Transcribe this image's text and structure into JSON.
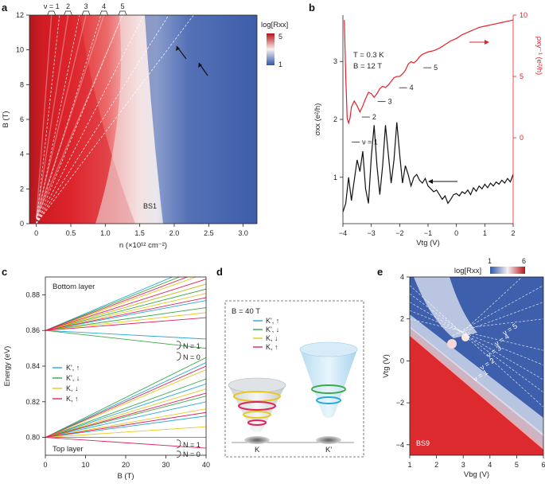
{
  "panels": [
    {
      "id": "a",
      "label": "a"
    },
    {
      "id": "b",
      "label": "b"
    },
    {
      "id": "c",
      "label": "c"
    },
    {
      "id": "d",
      "label": "d"
    },
    {
      "id": "e",
      "label": "e"
    }
  ],
  "colors": {
    "red": "#d9232b",
    "blue": "#3b5ba8",
    "white": "#f4f2f2",
    "axis": "#231f20",
    "bred": "#e4202a"
  },
  "panel_a": {
    "xlabel": "n (×10¹² cm⁻²)",
    "ylabel": "B (T)",
    "cbar_title": "log[Rxx]",
    "cbar_max": "5",
    "cbar_min": "1",
    "sample": "BS1",
    "nu_labels": [
      "ν = 1",
      "2",
      "3",
      "4",
      "5"
    ]
  },
  "chart_data": [
    {
      "type": "heatmap",
      "title": "",
      "xlabel": "n (×10¹² cm⁻²)",
      "ylabel": "B (T)",
      "xlim": [
        -0.1,
        3.2
      ],
      "ylim": [
        0,
        12
      ],
      "x_ticks": [
        0,
        0.5,
        1.0,
        1.5,
        2.0,
        2.5,
        3.0
      ],
      "y_ticks": [
        0,
        2,
        4,
        6,
        8,
        10,
        12
      ],
      "x_tick_labels": [
        "0",
        "0.5",
        "1.0",
        "1.5",
        "2.0",
        "2.5",
        "3.0"
      ],
      "y_tick_labels": [
        "0",
        "2",
        "4",
        "6",
        "8",
        "10",
        "12"
      ],
      "colorbar": {
        "label": "log[Rxx]",
        "min": 1,
        "max": 5
      },
      "fan_lines_nu": [
        1,
        2,
        3,
        4,
        5
      ],
      "annotation": "BS1"
    },
    {
      "type": "line",
      "xlabel": "Vtg (V)",
      "ylabel_left": "σxx (e²/h)",
      "ylabel_right": "ρxy⁻¹ (e²/h)",
      "xlim": [
        -4,
        2
      ],
      "ylim_left": [
        0.2,
        3.8
      ],
      "ylim_right": [
        -7,
        10
      ],
      "x_ticks": [
        -4,
        -3,
        -2,
        -1,
        0,
        1,
        2
      ],
      "x_tick_labels": [
        "−4",
        "−3",
        "−2",
        "−1",
        "0",
        "1",
        "2"
      ],
      "y_ticks_left": [
        1,
        2,
        3
      ],
      "y_tick_labels_left": [
        "1",
        "2",
        "3"
      ],
      "y_ticks_right": [
        0,
        5,
        10
      ],
      "y_tick_labels_right": [
        "0",
        "5",
        "10"
      ],
      "conditions": [
        "T = 0.3 K",
        "B = 12 T"
      ],
      "nu_labels": [
        "ν = 1",
        "2",
        "3",
        "4",
        "5"
      ],
      "series": [
        {
          "name": "σxx",
          "axis": "left",
          "color": "#111111",
          "x": [
            -4.0,
            -3.9,
            -3.8,
            -3.7,
            -3.6,
            -3.5,
            -3.4,
            -3.3,
            -3.2,
            -3.1,
            -3.0,
            -2.9,
            -2.8,
            -2.7,
            -2.6,
            -2.5,
            -2.4,
            -2.3,
            -2.2,
            -2.1,
            -2.0,
            -1.9,
            -1.8,
            -1.7,
            -1.6,
            -1.5,
            -1.4,
            -1.3,
            -1.2,
            -1.1,
            -1.0,
            -0.9,
            -0.8,
            -0.7,
            -0.6,
            -0.5,
            -0.4,
            -0.3,
            -0.2,
            -0.1,
            0.0,
            0.1,
            0.2,
            0.3,
            0.4,
            0.5,
            0.6,
            0.7,
            0.8,
            0.9,
            1.0,
            1.1,
            1.2,
            1.3,
            1.4,
            1.5,
            1.6,
            1.7,
            1.8,
            1.9,
            2.0
          ],
          "y": [
            0.4,
            0.55,
            1.0,
            0.6,
            0.95,
            1.3,
            1.1,
            1.45,
            0.8,
            0.55,
            1.35,
            1.9,
            1.2,
            0.7,
            1.2,
            1.9,
            1.4,
            0.9,
            1.3,
            1.95,
            1.4,
            0.9,
            1.2,
            1.05,
            0.85,
            1.0,
            1.05,
            0.95,
            0.9,
            0.98,
            0.85,
            0.8,
            0.75,
            0.78,
            0.7,
            0.62,
            0.68,
            0.55,
            0.62,
            0.7,
            0.72,
            0.68,
            0.75,
            0.72,
            0.78,
            0.7,
            0.82,
            0.76,
            0.85,
            0.8,
            0.88,
            0.82,
            0.9,
            0.85,
            0.92,
            0.88,
            0.95,
            0.9,
            0.98,
            0.92,
            1.05
          ]
        },
        {
          "name": "ρxy⁻¹",
          "axis": "right",
          "color": "#e4202a",
          "x": [
            -3.95,
            -3.9,
            -3.85,
            -3.8,
            -3.75,
            -3.7,
            -3.6,
            -3.5,
            -3.4,
            -3.3,
            -3.2,
            -3.1,
            -3.0,
            -2.9,
            -2.8,
            -2.7,
            -2.6,
            -2.5,
            -2.4,
            -2.3,
            -2.2,
            -2.1,
            -2.0,
            -1.9,
            -1.8,
            -1.7,
            -1.6,
            -1.5,
            -1.4,
            -1.3,
            -1.2,
            -1.0,
            -0.8,
            -0.6,
            -0.4,
            -0.2,
            0.0,
            0.2,
            0.4,
            0.6,
            0.8,
            1.0,
            1.2,
            1.4,
            1.6,
            1.8,
            2.0
          ],
          "y": [
            9.6,
            5.0,
            1.6,
            1.2,
            1.6,
            2.5,
            3.0,
            2.6,
            2.1,
            2.6,
            3.2,
            3.7,
            3.6,
            3.3,
            3.6,
            4.0,
            4.2,
            4.1,
            4.3,
            4.6,
            4.9,
            5.0,
            5.0,
            5.2,
            5.5,
            6.0,
            6.2,
            6.1,
            6.3,
            6.6,
            6.8,
            7.0,
            7.1,
            7.3,
            7.6,
            7.9,
            8.1,
            8.4,
            8.6,
            8.8,
            9.0,
            9.1,
            9.2,
            9.3,
            9.4,
            9.5,
            9.6
          ]
        }
      ]
    },
    {
      "type": "line",
      "xlabel": "B (T)",
      "ylabel": "Energy (eV)",
      "xlim": [
        0,
        40
      ],
      "ylim": [
        0.79,
        0.89
      ],
      "x_ticks": [
        0,
        10,
        20,
        30,
        40
      ],
      "x_tick_labels": [
        "0",
        "10",
        "20",
        "30",
        "40"
      ],
      "y_ticks": [
        0.8,
        0.82,
        0.84,
        0.86,
        0.88
      ],
      "y_tick_labels": [
        "0.80",
        "0.82",
        "0.84",
        "0.86",
        "0.88"
      ],
      "annotations": [
        "Bottom layer",
        "Top layer",
        "N = 1",
        "N = 0",
        "N = 1",
        "N = 0"
      ],
      "legend": [
        {
          "label": "K', ↑",
          "color": "#29a8d8"
        },
        {
          "label": "K', ↓",
          "color": "#3aa949"
        },
        {
          "label": "K, ↓",
          "color": "#e8c820"
        },
        {
          "label": "K, ↑",
          "color": "#e0245a"
        }
      ],
      "fans": [
        {
          "name": "Bottom layer",
          "origin_eV": 0.86,
          "slopes_eV_per_T": {
            "K', ↑": [
              0.00065,
              0.00095,
              -0.00012,
              0.00042
            ],
            "K', ↓": [
              0.0009,
              0.00058,
              0.00032,
              -0.00025
            ],
            "K, ↓": [
              0.0008,
              0.00052,
              0.00025,
              0.00065
            ],
            "K, ↑": [
              0.00072,
              0.00046,
              0.00018,
              0.00085
            ]
          }
        },
        {
          "name": "Top layer",
          "origin_eV": 0.8,
          "slopes_eV_per_T": {
            "K', ↑": [
              0.00105,
              0.00075,
              0.0005,
              0.0003
            ],
            "K', ↓": [
              0.00112,
              0.00082,
              0.00058,
              0.0
            ],
            "K, ↓": [
              0.00095,
              0.00068,
              0.0004,
              0.00015
            ],
            "K, ↑": [
              0.001,
              0.00062,
              0.00035,
              -0.00015
            ]
          }
        }
      ]
    },
    {
      "type": "heatmap",
      "xlabel": "Vbg (V)",
      "ylabel": "Vtg (V)",
      "xlim": [
        1,
        6
      ],
      "ylim": [
        -4.5,
        4
      ],
      "x_ticks": [
        1,
        2,
        3,
        4,
        5,
        6
      ],
      "x_tick_labels": [
        "1",
        "2",
        "3",
        "4",
        "5",
        "6"
      ],
      "y_ticks": [
        -4,
        -2,
        0,
        2,
        4
      ],
      "y_tick_labels": [
        "−4",
        "−2",
        "0",
        "2",
        "4"
      ],
      "colorbar": {
        "label": "log[Rxx]",
        "min": 1,
        "max": 6
      },
      "annotations": [
        "ν = 5",
        "ν = 4",
        "ν = 3",
        "ν = 2",
        "ν = 1",
        "BS9"
      ]
    }
  ],
  "panel_b": {
    "conditions": [
      "T = 0.3 K",
      "B = 12 T"
    ],
    "xlabel": "Vtg (V)",
    "ylabel_left": "σxx (e²/h)",
    "ylabel_right": "ρxy⁻¹ (e²/h)",
    "nu_labels": [
      "ν = 1",
      "2",
      "3",
      "4",
      "5"
    ]
  },
  "panel_c": {
    "top_annotation": "Bottom layer",
    "bottom_annotation": "Top layer",
    "n_labels": [
      "N = 1",
      "N = 0",
      "N = 1",
      "N = 0"
    ],
    "legend": [
      "K', ↑",
      "K', ↓",
      "K, ↓",
      "K, ↑"
    ],
    "xlabel": "B (T)",
    "ylabel": "Energy (eV)"
  },
  "panel_d": {
    "field": "B = 40 T",
    "legend": [
      "K', ↑",
      "K', ↓",
      "K, ↓",
      "K, ↑"
    ],
    "valley_left": "K",
    "valley_right": "K'"
  },
  "panel_e": {
    "cbar_title": "log[Rxx]",
    "cbar_min": "1",
    "cbar_max": "6",
    "xlabel": "Vbg (V)",
    "ylabel": "Vtg (V)",
    "nu_labels": [
      "ν = 5",
      "ν = 4",
      "ν = 3",
      "ν = 2",
      "ν = 1"
    ],
    "sample": "BS9"
  }
}
